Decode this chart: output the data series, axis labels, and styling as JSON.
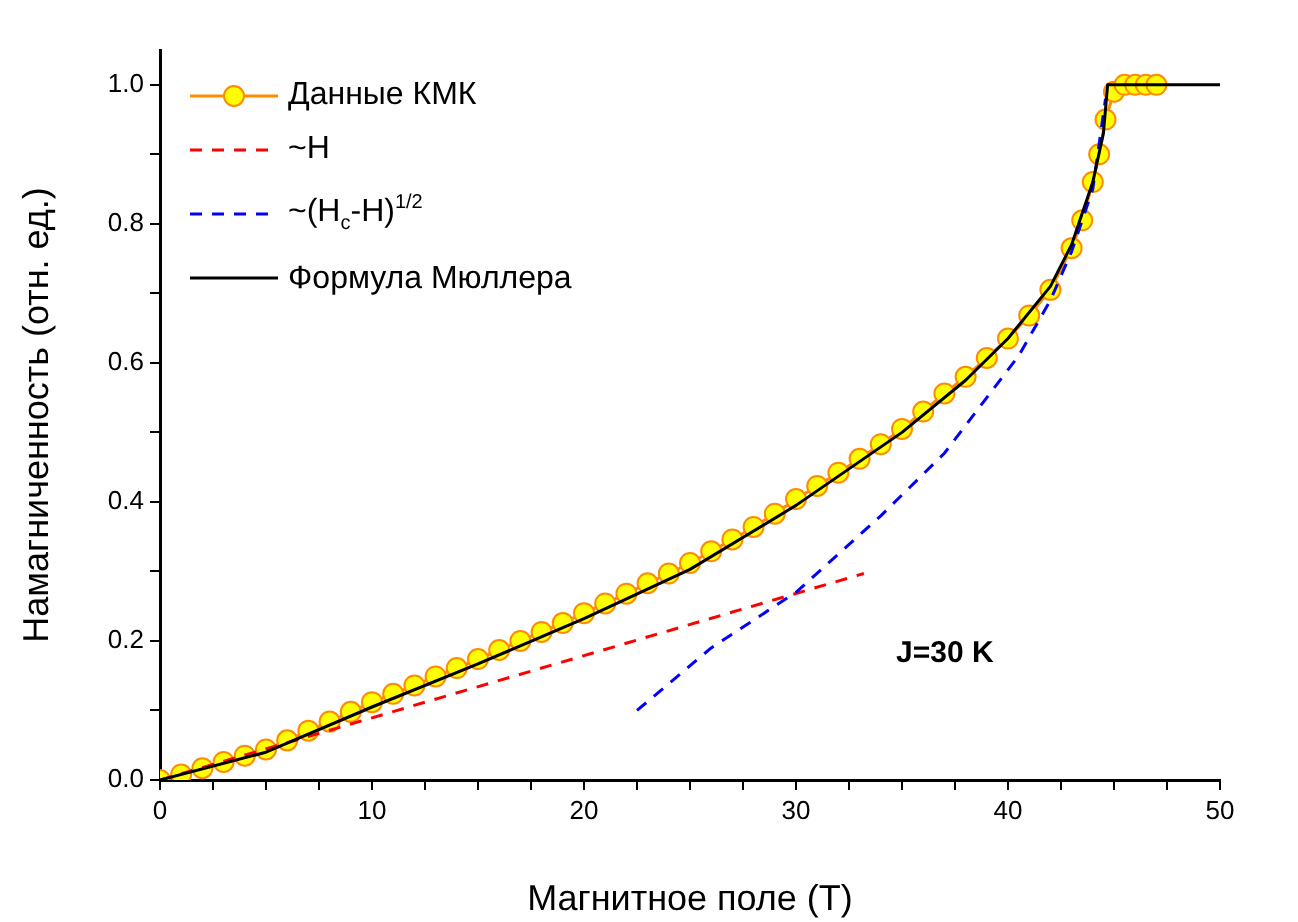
{
  "chart_data": {
    "type": "line",
    "xlabel": "Магнитное поле (Т)",
    "ylabel": "Намагниченность (отн. ед.)",
    "xlim": [
      0,
      50
    ],
    "ylim": [
      0,
      1.05
    ],
    "xticks": [
      0,
      {
        "value": 2.5,
        "label": null
      },
      {
        "value": 5,
        "label": null
      },
      {
        "value": 7.5,
        "label": null
      },
      10,
      {
        "value": 12.5,
        "label": null
      },
      {
        "value": 15,
        "label": null
      },
      {
        "value": 17.5,
        "label": null
      },
      20,
      {
        "value": 22.5,
        "label": null
      },
      {
        "value": 25,
        "label": null
      },
      {
        "value": 27.5,
        "label": null
      },
      30,
      {
        "value": 32.5,
        "label": null
      },
      {
        "value": 35,
        "label": null
      },
      {
        "value": 37.5,
        "label": null
      },
      40,
      {
        "value": 42.5,
        "label": null
      },
      {
        "value": 45,
        "label": null
      },
      {
        "value": 47.5,
        "label": null
      },
      50
    ],
    "yticks": [
      {
        "value": 0,
        "label": "0.0"
      },
      {
        "value": 0.1,
        "label": null
      },
      0.2,
      {
        "value": 0.3,
        "label": null
      },
      0.4,
      {
        "value": 0.5,
        "label": null
      },
      0.6,
      {
        "value": 0.7,
        "label": null
      },
      0.8,
      {
        "value": 0.9,
        "label": null
      },
      {
        "value": 1,
        "label": "1.0"
      }
    ],
    "grid": false,
    "legend": "top left",
    "annotations": [
      "J=30 K"
    ],
    "series": [
      {
        "name": "Данные КМК",
        "color": "#ff8c00",
        "marker": "circle",
        "line_style": "solid",
        "x": [
          0,
          1,
          2,
          3,
          4,
          5,
          6,
          7,
          8,
          9,
          10,
          11,
          12,
          13,
          14,
          15,
          16,
          17,
          18,
          19,
          20,
          21,
          22,
          23,
          24,
          25,
          26,
          27,
          28,
          29,
          30,
          31,
          32,
          33,
          34,
          35,
          36,
          37,
          38,
          39,
          40,
          41,
          42,
          43,
          43.5,
          44,
          44.3,
          44.6,
          45,
          45.5,
          46,
          46.5,
          47
        ],
        "values": [
          0,
          0.008,
          0.017,
          0.026,
          0.035,
          0.044,
          0.057,
          0.071,
          0.084,
          0.098,
          0.112,
          0.124,
          0.136,
          0.149,
          0.161,
          0.174,
          0.187,
          0.2,
          0.213,
          0.226,
          0.24,
          0.254,
          0.268,
          0.283,
          0.297,
          0.312,
          0.329,
          0.346,
          0.364,
          0.383,
          0.404,
          0.423,
          0.442,
          0.462,
          0.483,
          0.505,
          0.53,
          0.556,
          0.58,
          0.607,
          0.635,
          0.668,
          0.705,
          0.765,
          0.805,
          0.86,
          0.9,
          0.95,
          0.99,
          1,
          1,
          1,
          1
        ]
      },
      {
        "name": "~H",
        "color": "#ff0000",
        "marker": "none",
        "line_style": "dashed",
        "x": [
          0,
          33.2
        ],
        "values": [
          0,
          0.297
        ]
      },
      {
        "name": "~(H$_{c}$-H)$^{1/2}$",
        "color": "#0000ff",
        "marker": "none",
        "line_style": "dashed",
        "x": [
          22.5,
          26,
          30,
          34,
          37,
          39,
          40.5,
          42,
          43,
          44,
          44.6
        ],
        "values": [
          0.1,
          0.19,
          0.27,
          0.38,
          0.47,
          0.55,
          0.61,
          0.69,
          0.76,
          0.85,
          0.98
        ]
      },
      {
        "name": "Формула Мюллера",
        "color": "#000000",
        "marker": "none",
        "line_style": "solid",
        "x": [
          0,
          5,
          10,
          15,
          20,
          25,
          30,
          35,
          38,
          40,
          42,
          43,
          44,
          44.5,
          44.7,
          50
        ],
        "values": [
          0,
          0.04,
          0.105,
          0.167,
          0.232,
          0.303,
          0.395,
          0.5,
          0.575,
          0.635,
          0.71,
          0.77,
          0.86,
          0.93,
          1,
          1
        ]
      }
    ]
  }
}
